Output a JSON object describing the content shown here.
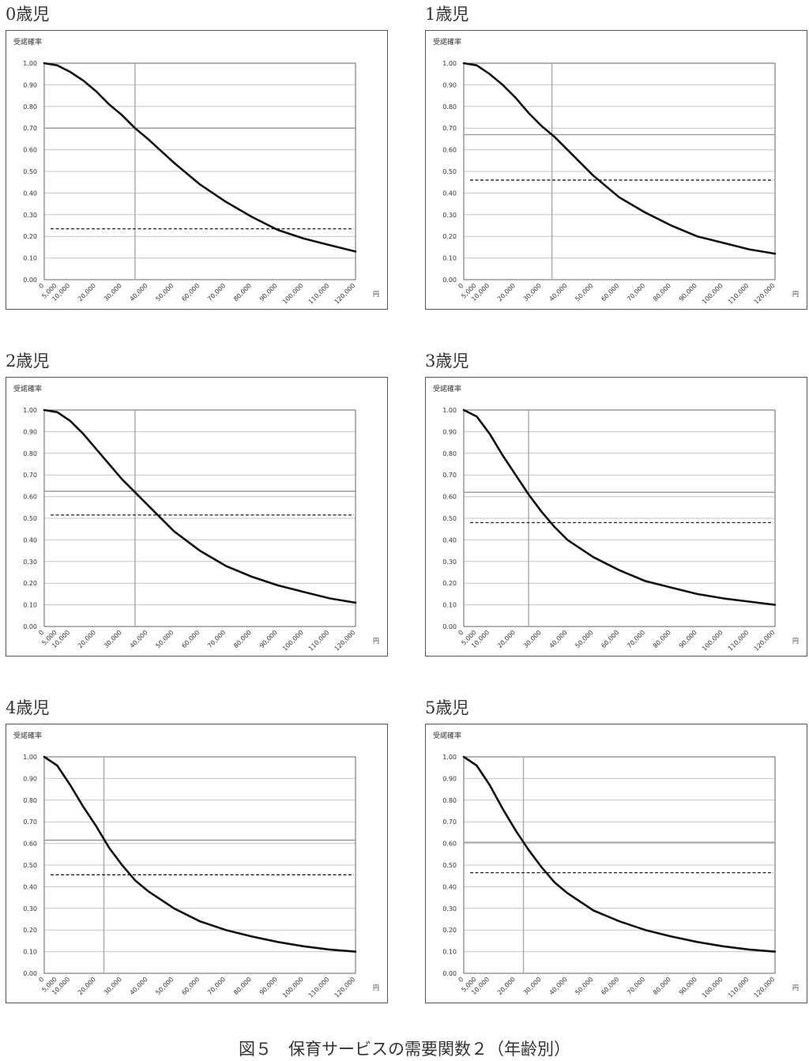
{
  "chart_data": [
    {
      "type": "line",
      "title": "0歳児",
      "ylabel": "受諾確率",
      "xlabel": "円",
      "ylim": [
        0,
        1
      ],
      "yticks": [
        "0.00",
        "0.10",
        "0.20",
        "0.30",
        "0.40",
        "0.50",
        "0.60",
        "0.70",
        "0.80",
        "0.90",
        "1.00"
      ],
      "xticks": [
        "0",
        "5,000",
        "10,000",
        "20,000",
        "30,000",
        "40,000",
        "50,000",
        "60,000",
        "70,000",
        "80,000",
        "90,000",
        "100,000",
        "110,000",
        "120,000"
      ],
      "curve": {
        "x": [
          0,
          5000,
          10000,
          15000,
          20000,
          25000,
          30000,
          35000,
          40000,
          50000,
          60000,
          70000,
          80000,
          90000,
          100000,
          110000,
          120000
        ],
        "y": [
          1.0,
          0.99,
          0.96,
          0.92,
          0.87,
          0.81,
          0.76,
          0.7,
          0.65,
          0.54,
          0.44,
          0.36,
          0.29,
          0.23,
          0.19,
          0.16,
          0.13
        ]
      },
      "vline_x": 35000,
      "hline_y": 0.7,
      "dashed_y": 0.235
    },
    {
      "type": "line",
      "title": "1歳児",
      "ylabel": "受諾確率",
      "xlabel": "円",
      "ylim": [
        0,
        1
      ],
      "yticks": [
        "0.00",
        "0.10",
        "0.20",
        "0.30",
        "0.40",
        "0.50",
        "0.60",
        "0.70",
        "0.80",
        "0.90",
        "1.00"
      ],
      "xticks": [
        "0",
        "5,000",
        "10,000",
        "20,000",
        "30,000",
        "40,000",
        "50,000",
        "60,000",
        "70,000",
        "80,000",
        "90,000",
        "100,000",
        "110,000",
        "120,000"
      ],
      "curve": {
        "x": [
          0,
          5000,
          10000,
          15000,
          20000,
          25000,
          30000,
          35000,
          40000,
          50000,
          60000,
          70000,
          80000,
          90000,
          100000,
          110000,
          120000
        ],
        "y": [
          1.0,
          0.99,
          0.95,
          0.9,
          0.84,
          0.77,
          0.71,
          0.66,
          0.6,
          0.48,
          0.38,
          0.31,
          0.25,
          0.2,
          0.17,
          0.14,
          0.12
        ]
      },
      "vline_x": 34000,
      "hline_y": 0.67,
      "dashed_y": 0.46
    },
    {
      "type": "line",
      "title": "2歳児",
      "ylabel": "受諾確率",
      "xlabel": "円",
      "ylim": [
        0,
        1
      ],
      "yticks": [
        "0.00",
        "0.10",
        "0.20",
        "0.30",
        "0.40",
        "0.50",
        "0.60",
        "0.70",
        "0.80",
        "0.90",
        "1.00"
      ],
      "xticks": [
        "0",
        "5,000",
        "10,000",
        "20,000",
        "30,000",
        "40,000",
        "50,000",
        "60,000",
        "70,000",
        "80,000",
        "90,000",
        "100,000",
        "110,000",
        "120,000"
      ],
      "curve": {
        "x": [
          0,
          5000,
          10000,
          15000,
          20000,
          25000,
          30000,
          35000,
          40000,
          50000,
          60000,
          70000,
          80000,
          90000,
          100000,
          110000,
          120000
        ],
        "y": [
          1.0,
          0.99,
          0.95,
          0.89,
          0.82,
          0.75,
          0.68,
          0.62,
          0.56,
          0.44,
          0.35,
          0.28,
          0.23,
          0.19,
          0.16,
          0.13,
          0.11
        ]
      },
      "vline_x": 35000,
      "hline_y": 0.625,
      "dashed_y": 0.515
    },
    {
      "type": "line",
      "title": "3歳児",
      "ylabel": "受諾確率",
      "xlabel": "円",
      "ylim": [
        0,
        1
      ],
      "yticks": [
        "0.00",
        "0.10",
        "0.20",
        "0.30",
        "0.40",
        "0.50",
        "0.60",
        "0.70",
        "0.80",
        "0.90",
        "1.00"
      ],
      "xticks": [
        "0",
        "5,000",
        "10,000",
        "20,000",
        "30,000",
        "40,000",
        "50,000",
        "60,000",
        "70,000",
        "80,000",
        "90,000",
        "100,000",
        "110,000",
        "120,000"
      ],
      "curve": {
        "x": [
          0,
          5000,
          10000,
          15000,
          20000,
          25000,
          30000,
          35000,
          40000,
          50000,
          60000,
          70000,
          80000,
          90000,
          100000,
          110000,
          120000
        ],
        "y": [
          1.0,
          0.97,
          0.89,
          0.79,
          0.7,
          0.61,
          0.53,
          0.46,
          0.4,
          0.32,
          0.26,
          0.21,
          0.18,
          0.15,
          0.13,
          0.115,
          0.1
        ]
      },
      "vline_x": 25000,
      "hline_y": 0.62,
      "dashed_y": 0.48
    },
    {
      "type": "line",
      "title": "4歳児",
      "ylabel": "受諾確率",
      "xlabel": "円",
      "ylim": [
        0,
        1
      ],
      "yticks": [
        "0.00",
        "0.10",
        "0.20",
        "0.30",
        "0.40",
        "0.50",
        "0.60",
        "0.70",
        "0.80",
        "0.90",
        "1.00"
      ],
      "xticks": [
        "0",
        "5,000",
        "10,000",
        "20,000",
        "30,000",
        "40,000",
        "50,000",
        "60,000",
        "70,000",
        "80,000",
        "90,000",
        "100,000",
        "110,000",
        "120,000"
      ],
      "curve": {
        "x": [
          0,
          5000,
          10000,
          15000,
          20000,
          25000,
          30000,
          35000,
          40000,
          50000,
          60000,
          70000,
          80000,
          90000,
          100000,
          110000,
          120000
        ],
        "y": [
          1.0,
          0.96,
          0.87,
          0.77,
          0.68,
          0.58,
          0.5,
          0.43,
          0.38,
          0.3,
          0.24,
          0.2,
          0.17,
          0.145,
          0.125,
          0.11,
          0.1
        ]
      },
      "vline_x": 23000,
      "hline_y": 0.615,
      "dashed_y": 0.455
    },
    {
      "type": "line",
      "title": "5歳児",
      "ylabel": "受諾確率",
      "xlabel": "円",
      "ylim": [
        0,
        1
      ],
      "yticks": [
        "0.00",
        "0.10",
        "0.20",
        "0.30",
        "0.40",
        "0.50",
        "0.60",
        "0.70",
        "0.80",
        "0.90",
        "1.00"
      ],
      "xticks": [
        "0",
        "5,000",
        "10,000",
        "20,000",
        "30,000",
        "40,000",
        "50,000",
        "60,000",
        "70,000",
        "80,000",
        "90,000",
        "100,000",
        "110,000",
        "120,000"
      ],
      "curve": {
        "x": [
          0,
          5000,
          10000,
          15000,
          20000,
          25000,
          30000,
          35000,
          40000,
          50000,
          60000,
          70000,
          80000,
          90000,
          100000,
          110000,
          120000
        ],
        "y": [
          1.0,
          0.96,
          0.87,
          0.76,
          0.66,
          0.57,
          0.49,
          0.42,
          0.37,
          0.29,
          0.24,
          0.2,
          0.17,
          0.145,
          0.125,
          0.11,
          0.1
        ]
      },
      "vline_x": 23000,
      "hline_y": 0.605,
      "dashed_y": 0.465
    }
  ],
  "caption": "図５　保育サービスの需要関数２（年齢別）"
}
